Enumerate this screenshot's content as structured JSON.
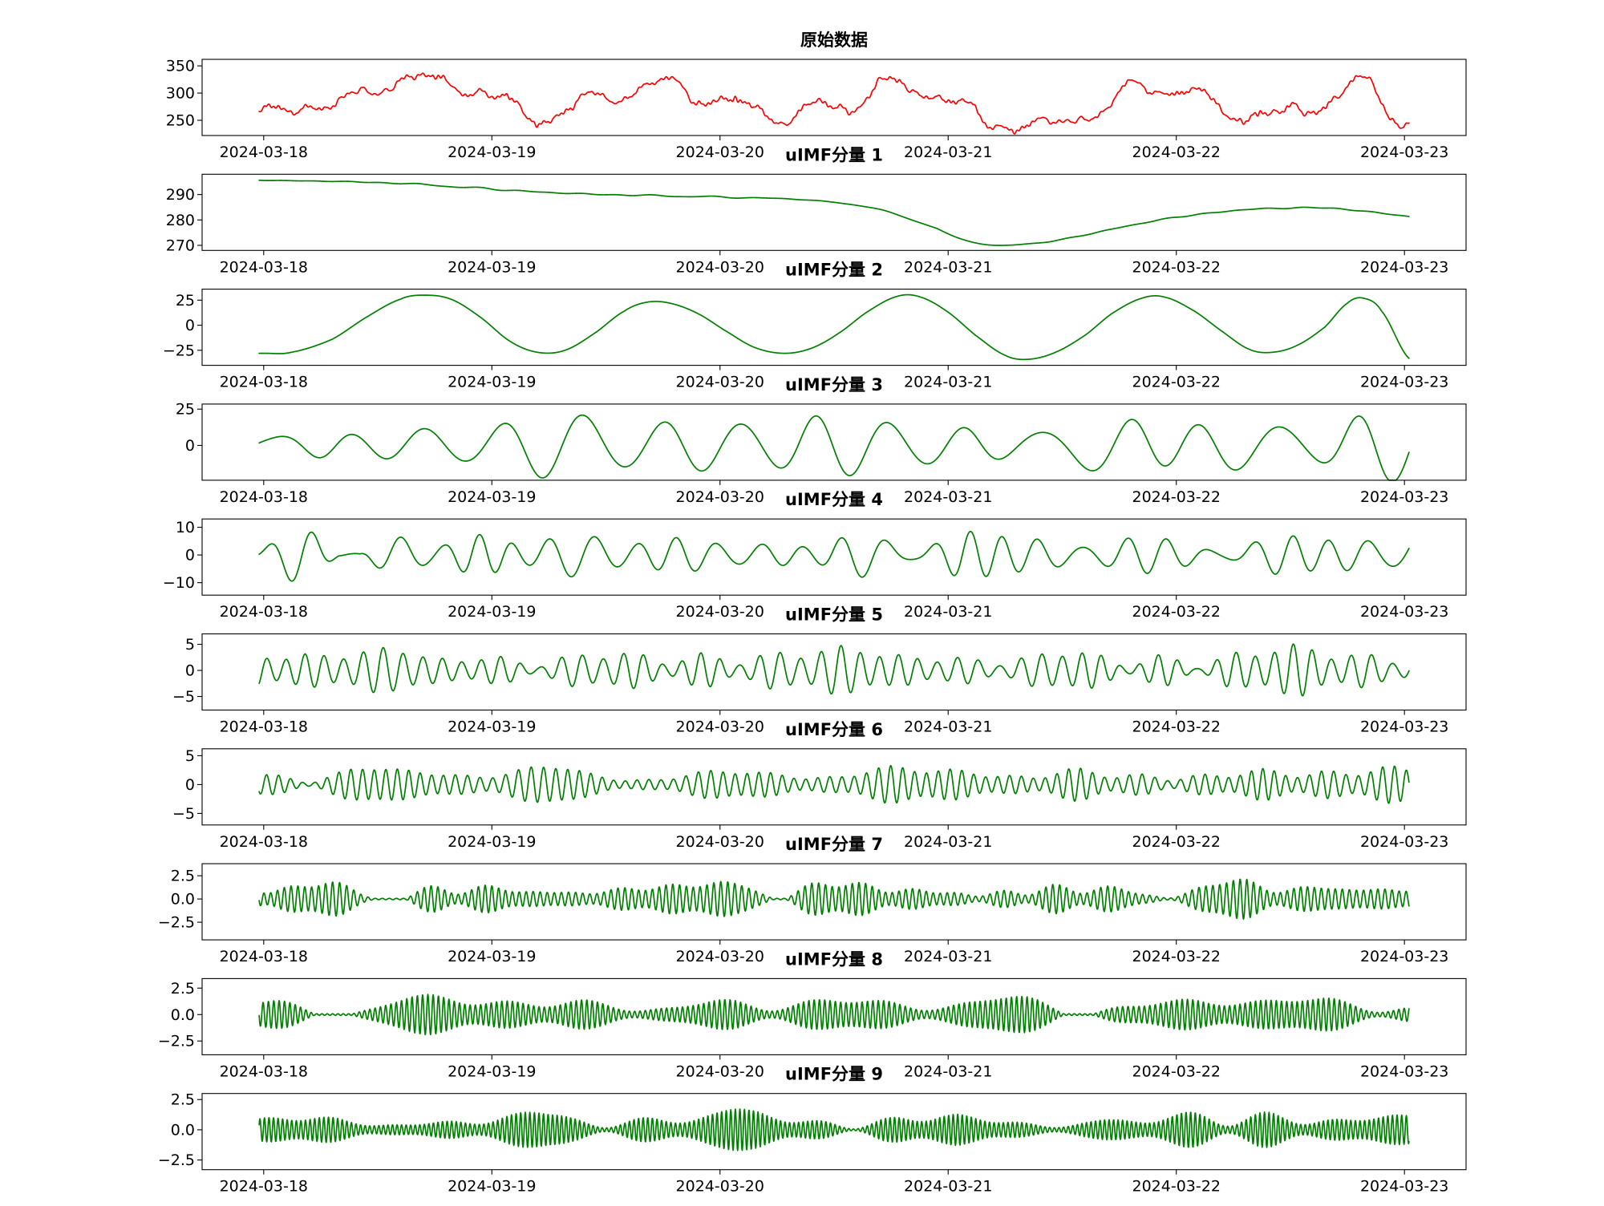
{
  "figure": {
    "title": "原始数据",
    "background_color": "#ffffff"
  },
  "chart_data": {
    "type": "line",
    "title": "原始数据",
    "x_axis": {
      "tick_labels": [
        "2024-03-18",
        "2024-03-19",
        "2024-03-20",
        "2024-03-21",
        "2024-03-22",
        "2024-03-23"
      ],
      "tick_days": [
        0,
        1,
        2,
        3,
        4,
        5
      ],
      "domain_days": [
        -0.27,
        5.27
      ],
      "data_span_days": [
        -0.02,
        5.02
      ]
    },
    "panels": [
      {
        "name": "original",
        "title": "原始数据",
        "color": "#ff0000",
        "ylim": [
          222,
          362
        ],
        "ytick_values": [
          250,
          300,
          350
        ],
        "ytick_labels": [
          "250",
          "300",
          "350"
        ],
        "signal": {
          "kind": "sum_of_components"
        }
      },
      {
        "name": "uIMF-1",
        "title": "uIMF分量 1",
        "color": "#008000",
        "ylim": [
          268,
          298
        ],
        "ytick_values": [
          270,
          280,
          290
        ],
        "ytick_labels": [
          "270",
          "280",
          "290"
        ],
        "signal": {
          "kind": "keypoints",
          "seed": 11,
          "noise_amp": 0.25,
          "noise_freq": 4,
          "points": [
            [
              0,
              295.6
            ],
            [
              0.3,
              295.2
            ],
            [
              0.6,
              294.4
            ],
            [
              0.9,
              292.8
            ],
            [
              1.1,
              291.6
            ],
            [
              1.3,
              290.6
            ],
            [
              1.5,
              290.0
            ],
            [
              1.7,
              289.6
            ],
            [
              1.9,
              289.2
            ],
            [
              2.1,
              288.8
            ],
            [
              2.3,
              288.3
            ],
            [
              2.5,
              287.0
            ],
            [
              2.65,
              285.0
            ],
            [
              2.8,
              281.5
            ],
            [
              2.95,
              276.5
            ],
            [
              3.05,
              272.8
            ],
            [
              3.15,
              270.5
            ],
            [
              3.25,
              270.0
            ],
            [
              3.4,
              271.0
            ],
            [
              3.55,
              273.2
            ],
            [
              3.7,
              276.0
            ],
            [
              3.85,
              278.8
            ],
            [
              4.0,
              281.0
            ],
            [
              4.15,
              282.8
            ],
            [
              4.3,
              284.0
            ],
            [
              4.5,
              284.8
            ],
            [
              4.7,
              284.5
            ],
            [
              4.85,
              283.2
            ],
            [
              5.02,
              281.4
            ]
          ]
        }
      },
      {
        "name": "uIMF-2",
        "title": "uIMF分量 2",
        "color": "#008000",
        "ylim": [
          -40,
          36
        ],
        "ytick_values": [
          -25,
          0,
          25
        ],
        "ytick_labels": [
          "−25",
          "0",
          "25"
        ],
        "signal": {
          "kind": "keypoints",
          "seed": 21,
          "noise_amp": 0,
          "noise_freq": 1,
          "points": [
            [
              0,
              -28
            ],
            [
              0.12,
              -27
            ],
            [
              0.3,
              -14
            ],
            [
              0.45,
              8
            ],
            [
              0.6,
              26
            ],
            [
              0.7,
              30
            ],
            [
              0.82,
              26
            ],
            [
              0.95,
              8
            ],
            [
              1.08,
              -16
            ],
            [
              1.2,
              -27
            ],
            [
              1.32,
              -25
            ],
            [
              1.45,
              -8
            ],
            [
              1.58,
              14
            ],
            [
              1.68,
              23
            ],
            [
              1.78,
              22
            ],
            [
              1.9,
              12
            ],
            [
              2.02,
              -5
            ],
            [
              2.15,
              -22
            ],
            [
              2.28,
              -28
            ],
            [
              2.4,
              -23
            ],
            [
              2.52,
              -8
            ],
            [
              2.65,
              14
            ],
            [
              2.78,
              29
            ],
            [
              2.88,
              28
            ],
            [
              3.0,
              13
            ],
            [
              3.12,
              -10
            ],
            [
              3.25,
              -30
            ],
            [
              3.35,
              -34
            ],
            [
              3.47,
              -27
            ],
            [
              3.6,
              -10
            ],
            [
              3.72,
              12
            ],
            [
              3.85,
              27
            ],
            [
              3.95,
              28
            ],
            [
              4.08,
              14
            ],
            [
              4.2,
              -6
            ],
            [
              4.32,
              -24
            ],
            [
              4.42,
              -27
            ],
            [
              4.53,
              -20
            ],
            [
              4.65,
              -2
            ],
            [
              4.75,
              22
            ],
            [
              4.82,
              27
            ],
            [
              4.9,
              14
            ],
            [
              5.02,
              -33
            ]
          ]
        }
      },
      {
        "name": "uIMF-3",
        "title": "uIMF分量 3",
        "color": "#008000",
        "ylim": [
          -24,
          28.5
        ],
        "ytick_values": [
          0,
          25
        ],
        "ytick_labels": [
          "0",
          "25"
        ],
        "signal": {
          "kind": "osc",
          "carrier_freq": 2.95,
          "phase_rad": 0.8,
          "freq_jitter": 0.45,
          "base_amp": 15.5,
          "env_base": 1.0,
          "env_mods": [
            {
              "freq": 0.75,
              "depth": 0.3,
              "phase": 2.1
            },
            {
              "freq": 0.33,
              "depth": 0.18,
              "phase": 4.4
            }
          ],
          "env_noise_depth": 0.32,
          "env_noise_freq": 1.1,
          "env_min": 0.15,
          "env_max": 1.62,
          "ramp_until": 0.55,
          "ramp_start": 0.25,
          "seed": 31
        }
      },
      {
        "name": "uIMF-4",
        "title": "uIMF分量 4",
        "color": "#008000",
        "ylim": [
          -14.5,
          13
        ],
        "ytick_values": [
          -10,
          0,
          10
        ],
        "ytick_labels": [
          "−10",
          "0",
          "10"
        ],
        "signal": {
          "kind": "osc",
          "carrier_freq": 5.6,
          "phase_rad": 0.3,
          "freq_jitter": 0.55,
          "base_amp": 5.0,
          "env_base": 1.0,
          "env_mods": [
            {
              "freq": 1.6,
              "depth": 0.3,
              "phase": 0.6
            },
            {
              "freq": 0.55,
              "depth": 0.2,
              "phase": 3.3
            }
          ],
          "env_noise_depth": 0.55,
          "env_noise_freq": 1.7,
          "env_min": 0.1,
          "env_max": 2.3,
          "seed": 41
        }
      },
      {
        "name": "uIMF-5",
        "title": "uIMF分量 5",
        "color": "#008000",
        "ylim": [
          -7.6,
          7
        ],
        "ytick_values": [
          -5,
          0,
          5
        ],
        "ytick_labels": [
          "−5",
          "0",
          "5"
        ],
        "signal": {
          "kind": "osc",
          "carrier_freq": 11.5,
          "phase_rad": 1.2,
          "freq_jitter": 0.5,
          "base_amp": 2.5,
          "env_base": 1.0,
          "env_mods": [
            {
              "freq": 1.1,
              "depth": 0.35,
              "phase": 2.8
            },
            {
              "freq": 0.45,
              "depth": 0.2,
              "phase": 0.9
            }
          ],
          "env_noise_depth": 0.6,
          "env_noise_freq": 1.9,
          "env_min": 0.1,
          "env_max": 2.5,
          "seed": 51
        }
      },
      {
        "name": "uIMF-6",
        "title": "uIMF分量 6",
        "color": "#008000",
        "ylim": [
          -7,
          6.2
        ],
        "ytick_values": [
          -5,
          0,
          5
        ],
        "ytick_labels": [
          "−5",
          "0",
          "5"
        ],
        "signal": {
          "kind": "osc",
          "carrier_freq": 19,
          "phase_rad": 0.5,
          "freq_jitter": 0.45,
          "base_amp": 1.8,
          "env_base": 1.0,
          "env_mods": [
            {
              "freq": 1.4,
              "depth": 0.4,
              "phase": 1.7
            },
            {
              "freq": 0.5,
              "depth": 0.2,
              "phase": 5.1
            }
          ],
          "env_noise_depth": 0.65,
          "env_noise_freq": 2.2,
          "env_min": 0.08,
          "env_max": 2.9,
          "seed": 61
        }
      },
      {
        "name": "uIMF-7",
        "title": "uIMF分量 7",
        "color": "#008000",
        "ylim": [
          -4.4,
          3.8
        ],
        "ytick_values": [
          -2.5,
          0,
          2.5
        ],
        "ytick_labels": [
          "−2.5",
          "0.0",
          "2.5"
        ],
        "signal": {
          "kind": "osc",
          "carrier_freq": 33,
          "phase_rad": 0.9,
          "freq_jitter": 0.5,
          "base_amp": 1.0,
          "env_base": 1.0,
          "env_mods": [
            {
              "freq": 1.2,
              "depth": 0.4,
              "phase": 0.4
            },
            {
              "freq": 0.4,
              "depth": 0.25,
              "phase": 2.6
            }
          ],
          "env_noise_depth": 0.7,
          "env_noise_freq": 2.6,
          "env_min": 0.07,
          "env_max": 3.3,
          "seed": 71
        }
      },
      {
        "name": "uIMF-8",
        "title": "uIMF分量 8",
        "color": "#008000",
        "ylim": [
          -3.8,
          3.4
        ],
        "ytick_values": [
          -2.5,
          0,
          2.5
        ],
        "ytick_labels": [
          "−2.5",
          "0.0",
          "2.5"
        ],
        "signal": {
          "kind": "osc",
          "carrier_freq": 43,
          "phase_rad": 2.2,
          "freq_jitter": 0.45,
          "base_amp": 0.95,
          "env_base": 1.0,
          "env_mods": [
            {
              "freq": 1.5,
              "depth": 0.35,
              "phase": 2.0
            },
            {
              "freq": 0.6,
              "depth": 0.25,
              "phase": 4.0
            }
          ],
          "env_noise_depth": 0.65,
          "env_noise_freq": 2.4,
          "env_min": 0.08,
          "env_max": 3.2,
          "seed": 81
        }
      },
      {
        "name": "uIMF-9",
        "title": "uIMF分量 9",
        "color": "#008000",
        "ylim": [
          -3.3,
          3.0
        ],
        "ytick_values": [
          -2.5,
          0,
          2.5
        ],
        "ytick_labels": [
          "−2.5",
          "0.0",
          "2.5"
        ],
        "signal": {
          "kind": "osc",
          "carrier_freq": 50,
          "phase_rad": 0.1,
          "freq_jitter": 0.4,
          "base_amp": 0.8,
          "env_base": 1.0,
          "env_mods": [
            {
              "freq": 1.0,
              "depth": 0.4,
              "phase": 1.1
            },
            {
              "freq": 0.35,
              "depth": 0.2,
              "phase": 3.7
            }
          ],
          "env_noise_depth": 0.7,
          "env_noise_freq": 2.1,
          "env_min": 0.07,
          "env_max": 3.1,
          "seed": 91
        }
      }
    ]
  }
}
